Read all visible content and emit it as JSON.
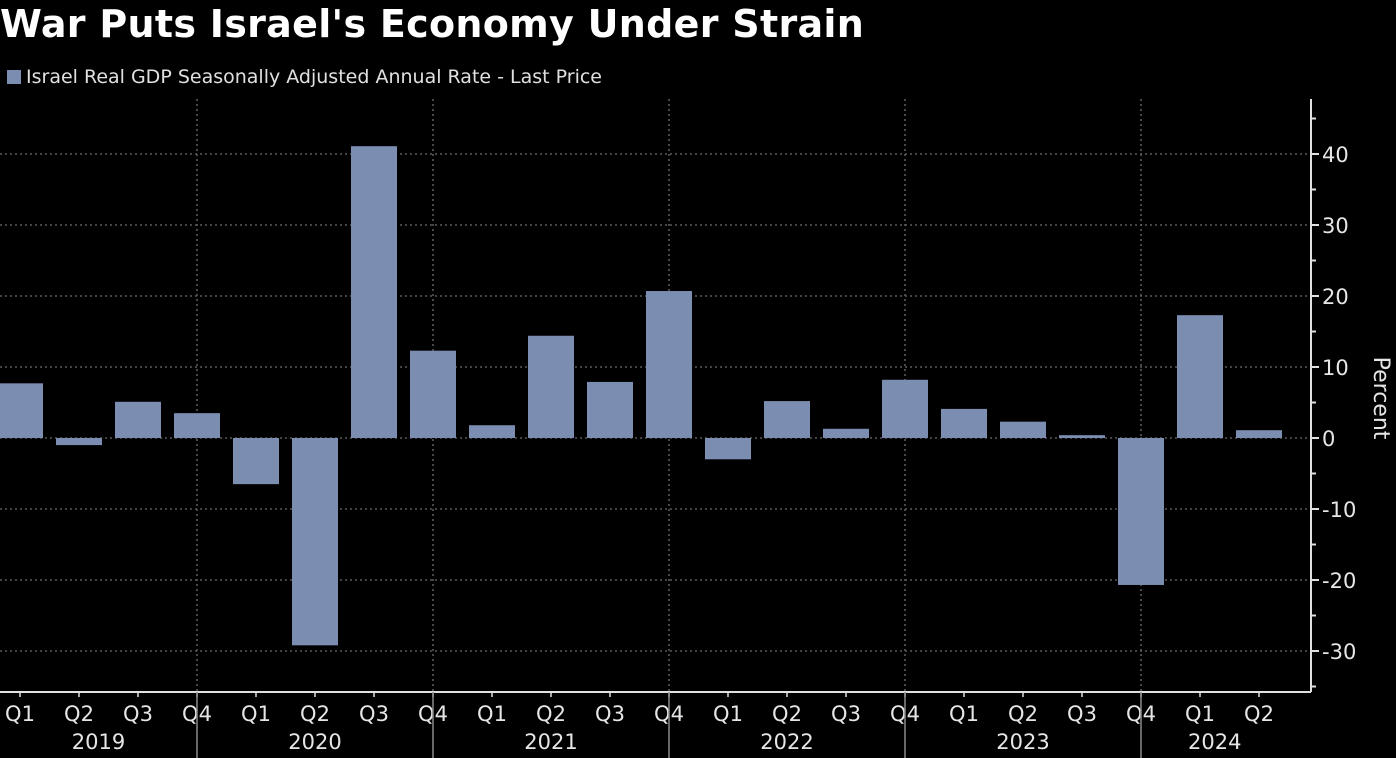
{
  "title": "War Puts Israel's Economy Under Strain",
  "colors": {
    "bar": "#7b8db0",
    "background": "#000000",
    "grid": "#5a5a5a",
    "axis": "#e0e0e0"
  },
  "chart_data": {
    "type": "bar",
    "title": "War Puts Israel's Economy Under Strain",
    "legend": {
      "position": "top-left",
      "entries": [
        "Israel Real GDP Seasonally Adjusted Annual Rate - Last Price"
      ]
    },
    "xlabel": "",
    "ylabel": "Percent",
    "y_axis_side": "right",
    "ylim": [
      -36,
      48
    ],
    "yticks": [
      40,
      30,
      20,
      10,
      0,
      -10,
      -20,
      -30
    ],
    "ytick_labels": [
      "40",
      "30",
      "20",
      "10",
      "0",
      "-10",
      "-20",
      "-30"
    ],
    "grid": true,
    "categories": [
      "Q1 2019",
      "Q2 2019",
      "Q3 2019",
      "Q4 2019",
      "Q1 2020",
      "Q2 2020",
      "Q3 2020",
      "Q4 2020",
      "Q1 2021",
      "Q2 2021",
      "Q3 2021",
      "Q4 2021",
      "Q1 2022",
      "Q2 2022",
      "Q3 2022",
      "Q4 2022",
      "Q1 2023",
      "Q2 2023",
      "Q3 2023",
      "Q4 2023",
      "Q1 2024",
      "Q2 2024"
    ],
    "quarter_labels": [
      "Q1",
      "Q2",
      "Q3",
      "Q4",
      "Q1",
      "Q2",
      "Q3",
      "Q4",
      "Q1",
      "Q2",
      "Q3",
      "Q4",
      "Q1",
      "Q2",
      "Q3",
      "Q4",
      "Q1",
      "Q2",
      "Q3",
      "Q4",
      "Q1",
      "Q2"
    ],
    "year_labels": [
      "2019",
      "2020",
      "2021",
      "2022",
      "2023",
      "2024"
    ],
    "series": [
      {
        "name": "Israel Real GDP Seasonally Adjusted Annual Rate - Last Price",
        "values": [
          7.7,
          -1.0,
          5.1,
          3.5,
          -6.5,
          -29.2,
          41.1,
          12.3,
          1.8,
          14.4,
          7.9,
          20.7,
          -3.0,
          5.2,
          1.3,
          8.2,
          4.1,
          2.3,
          0.4,
          -20.7,
          17.3,
          1.1
        ]
      }
    ]
  }
}
